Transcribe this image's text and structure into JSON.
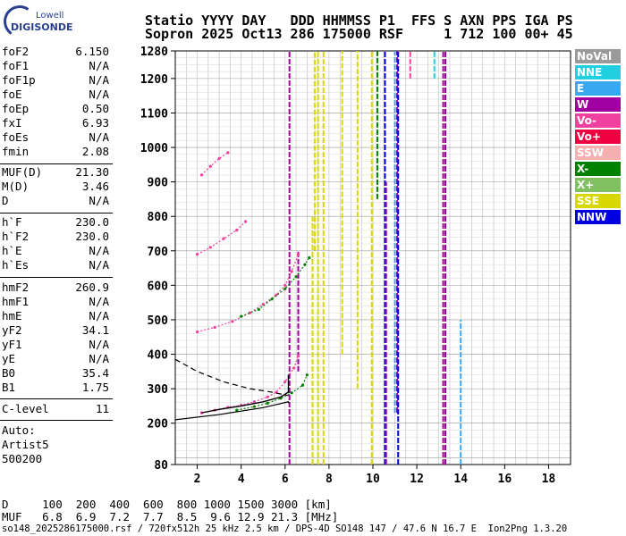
{
  "logo": {
    "line1": "Lowell",
    "line2": "DIGISONDE"
  },
  "header": {
    "line1": "Statio YYYY DAY   DDD HHMMSS P1  FFS S AXN PPS IGA PS",
    "line2": "Sopron 2025 Oct13 286 175000 RSF     1 712 100 00+ 45"
  },
  "params_group1": [
    {
      "label": "foF2",
      "value": "6.150"
    },
    {
      "label": "foF1",
      "value": "N/A"
    },
    {
      "label": "foF1p",
      "value": "N/A"
    },
    {
      "label": "foE",
      "value": "N/A"
    },
    {
      "label": "foEp",
      "value": "0.50"
    },
    {
      "label": "fxI",
      "value": "6.93"
    },
    {
      "label": "foEs",
      "value": "N/A"
    },
    {
      "label": "fmin",
      "value": "2.08"
    }
  ],
  "params_group2": [
    {
      "label": "MUF(D)",
      "value": "21.30"
    },
    {
      "label": "M(D)",
      "value": "3.46"
    },
    {
      "label": "D",
      "value": "N/A"
    }
  ],
  "params_group3": [
    {
      "label": "h`F",
      "value": "230.0"
    },
    {
      "label": "h`F2",
      "value": "230.0"
    },
    {
      "label": "h`E",
      "value": "N/A"
    },
    {
      "label": "h`Es",
      "value": "N/A"
    }
  ],
  "params_group4": [
    {
      "label": "hmF2",
      "value": "260.9"
    },
    {
      "label": "hmF1",
      "value": "N/A"
    },
    {
      "label": "hmE",
      "value": "N/A"
    },
    {
      "label": "yF2",
      "value": "34.1"
    },
    {
      "label": "yF1",
      "value": "N/A"
    },
    {
      "label": "yE",
      "value": "N/A"
    },
    {
      "label": "B0",
      "value": "35.4"
    },
    {
      "label": "B1",
      "value": "1.75"
    }
  ],
  "params_group5": [
    {
      "label": "C-level",
      "value": "11"
    }
  ],
  "auto": {
    "line1": "Auto:",
    "line2": "Artist5",
    "line3": "500200"
  },
  "legend": [
    {
      "label": "NoVal",
      "color": "#9a9a9a"
    },
    {
      "label": "NNE",
      "color": "#20d0e0"
    },
    {
      "label": "E",
      "color": "#3aa8f0"
    },
    {
      "label": "W",
      "color": "#a000a0"
    },
    {
      "label": "Vo-",
      "color": "#f040a0"
    },
    {
      "label": "Vo+",
      "color": "#f00040"
    },
    {
      "label": "SSW",
      "color": "#f4b0b0"
    },
    {
      "label": "X-",
      "color": "#008000"
    },
    {
      "label": "X+",
      "color": "#80c060"
    },
    {
      "label": "SSE",
      "color": "#d8d800"
    },
    {
      "label": "NNW",
      "color": "#0000e0"
    }
  ],
  "bottom": {
    "d_line": "D     100  200  400  600  800 1000 1500 3000 [km]",
    "muf_line": "MUF   6.8  6.9  7.2  7.7  8.5  9.6 12.9 21.3 [MHz]"
  },
  "footer": "so148_2025286175000.rsf / 720fx512h 25 kHz 2.5 km / DPS-4D SO148 147 / 47.6 N 16.7 E  Ion2Png 1.3.20",
  "chart_data": {
    "type": "scatter",
    "title": "",
    "xlabel": "",
    "ylabel": "",
    "xlim": [
      1,
      19
    ],
    "ylim": [
      80,
      1280
    ],
    "x_ticks": [
      2,
      4,
      6,
      8,
      10,
      12,
      14,
      16,
      18
    ],
    "y_ticks": [
      80,
      200,
      300,
      400,
      500,
      600,
      700,
      800,
      900,
      1000,
      1100,
      1200,
      1280
    ],
    "grid": true,
    "legend_position": "right",
    "vertical_bands": [
      {
        "f": 6.2,
        "h0": 80,
        "h1": 1280,
        "color": "#a000a0"
      },
      {
        "f": 6.6,
        "h0": 350,
        "h1": 700,
        "color": "#a000a0"
      },
      {
        "f": 7.25,
        "h0": 80,
        "h1": 800,
        "color": "#d8d800"
      },
      {
        "f": 7.35,
        "h0": 700,
        "h1": 1280,
        "color": "#d8d800"
      },
      {
        "f": 7.5,
        "h0": 80,
        "h1": 1280,
        "color": "#d8d800"
      },
      {
        "f": 7.75,
        "h0": 80,
        "h1": 1280,
        "color": "#d8d800"
      },
      {
        "f": 8.6,
        "h0": 400,
        "h1": 1280,
        "color": "#d8d800"
      },
      {
        "f": 9.3,
        "h0": 300,
        "h1": 1280,
        "color": "#d8d800"
      },
      {
        "f": 9.95,
        "h0": 80,
        "h1": 1280,
        "color": "#d8d800"
      },
      {
        "f": 10.2,
        "h0": 850,
        "h1": 1280,
        "color": "#008000"
      },
      {
        "f": 10.55,
        "h0": 80,
        "h1": 1280,
        "color": "#0000e0"
      },
      {
        "f": 10.6,
        "h0": 80,
        "h1": 900,
        "color": "#a000a0"
      },
      {
        "f": 11.0,
        "h0": 230,
        "h1": 1280,
        "color": "#3aa8f0"
      },
      {
        "f": 11.1,
        "h0": 230,
        "h1": 1280,
        "color": "#a000a0"
      },
      {
        "f": 11.15,
        "h0": 80,
        "h1": 1280,
        "color": "#0000e0"
      },
      {
        "f": 11.7,
        "h0": 1200,
        "h1": 1280,
        "color": "#f040a0"
      },
      {
        "f": 12.8,
        "h0": 1200,
        "h1": 1280,
        "color": "#20d0e0"
      },
      {
        "f": 13.2,
        "h0": 80,
        "h1": 1280,
        "color": "#a000a0"
      },
      {
        "f": 13.3,
        "h0": 80,
        "h1": 1280,
        "color": "#a000a0"
      },
      {
        "f": 14.0,
        "h0": 80,
        "h1": 500,
        "color": "#3aa8f0"
      }
    ],
    "series": [
      {
        "name": "Vo-",
        "color": "#f040a0",
        "points": [
          [
            2.2,
            230
          ],
          [
            2.8,
            238
          ],
          [
            3.4,
            246
          ],
          [
            4.0,
            252
          ],
          [
            4.6,
            262
          ],
          [
            5.2,
            276
          ],
          [
            5.6,
            290
          ],
          [
            6.0,
            320
          ],
          [
            6.4,
            360
          ],
          [
            6.6,
            395
          ]
        ]
      },
      {
        "name": "X-",
        "color": "#008000",
        "points": [
          [
            3.8,
            238
          ],
          [
            4.6,
            248
          ],
          [
            5.2,
            258
          ],
          [
            5.8,
            272
          ],
          [
            6.3,
            288
          ],
          [
            6.8,
            310
          ],
          [
            7.0,
            340
          ]
        ]
      },
      {
        "name": "Vo- 2-hop",
        "color": "#f040a0",
        "points": [
          [
            2.0,
            465
          ],
          [
            2.8,
            478
          ],
          [
            3.6,
            495
          ],
          [
            4.4,
            520
          ],
          [
            5.0,
            545
          ],
          [
            5.6,
            572
          ],
          [
            6.0,
            600
          ],
          [
            6.3,
            640
          ],
          [
            6.6,
            690
          ]
        ]
      },
      {
        "name": "X- 2-hop",
        "color": "#008000",
        "points": [
          [
            4.0,
            510
          ],
          [
            4.8,
            530
          ],
          [
            5.4,
            560
          ],
          [
            6.0,
            590
          ],
          [
            6.5,
            625
          ],
          [
            6.9,
            660
          ],
          [
            7.1,
            680
          ]
        ]
      },
      {
        "name": "Vo- 3-hop",
        "color": "#f040a0",
        "points": [
          [
            2.0,
            690
          ],
          [
            2.6,
            710
          ],
          [
            3.2,
            735
          ],
          [
            3.8,
            760
          ],
          [
            4.2,
            785
          ]
        ]
      },
      {
        "name": "Vo- 4-hop",
        "color": "#f040a0",
        "points": [
          [
            2.2,
            920
          ],
          [
            2.6,
            945
          ],
          [
            3.0,
            968
          ],
          [
            3.4,
            985
          ]
        ]
      }
    ],
    "profile_line": [
      [
        2.2,
        230
      ],
      [
        3.0,
        240
      ],
      [
        4.0,
        250
      ],
      [
        5.0,
        262
      ],
      [
        5.8,
        276
      ],
      [
        6.15,
        290
      ],
      [
        6.15,
        340
      ]
    ],
    "profile_line2": [
      [
        1.0,
        210
      ],
      [
        3.0,
        225
      ],
      [
        5.0,
        245
      ],
      [
        6.15,
        262
      ],
      [
        6.15,
        258
      ]
    ],
    "dashed_profile": [
      [
        1.0,
        385
      ],
      [
        2.0,
        350
      ],
      [
        3.2,
        320
      ],
      [
        4.4,
        300
      ],
      [
        5.4,
        290
      ],
      [
        6.15,
        280
      ]
    ]
  }
}
